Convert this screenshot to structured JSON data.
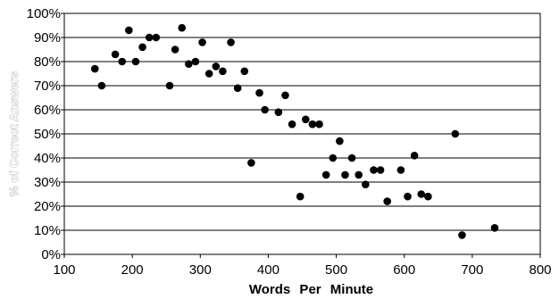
{
  "chart_data": {
    "type": "scatter",
    "title": "",
    "xlabel": "Words Per Minute",
    "ylabel": "% of Correct Answers",
    "xlim": [
      100,
      800
    ],
    "ylim": [
      0,
      100
    ],
    "x_ticks": [
      100,
      200,
      300,
      400,
      500,
      600,
      700,
      800
    ],
    "y_ticks": [
      0,
      10,
      20,
      30,
      40,
      50,
      60,
      70,
      80,
      90,
      100
    ],
    "x_tick_labels": [
      "100",
      "200",
      "300",
      "400",
      "500",
      "600",
      "700",
      "800"
    ],
    "y_tick_labels": [
      "0%",
      "10%",
      "20%",
      "30%",
      "40%",
      "50%",
      "60%",
      "70%",
      "80%",
      "90%",
      "100%"
    ],
    "grid": "horizontal",
    "legend": "none",
    "marker_color": "#000000",
    "series": [
      {
        "x": [
          145,
          155,
          175,
          185,
          195,
          205,
          215,
          225,
          235,
          255,
          263,
          273,
          283,
          293,
          303,
          313,
          323,
          333,
          345,
          355,
          365,
          375,
          387,
          395,
          415,
          425,
          435,
          447,
          455,
          465,
          475,
          485,
          495,
          505,
          513,
          523,
          533,
          543,
          555,
          565,
          575,
          595,
          605,
          615,
          625,
          635,
          675,
          685,
          733
        ],
        "y": [
          77,
          70,
          83,
          80,
          93,
          80,
          86,
          90,
          90,
          70,
          85,
          94,
          79,
          80,
          88,
          75,
          78,
          76,
          88,
          69,
          76,
          38,
          67,
          60,
          59,
          66,
          54,
          24,
          56,
          54,
          54,
          33,
          40,
          47,
          33,
          40,
          33,
          29,
          35,
          35,
          22,
          35,
          24,
          41,
          25,
          24,
          50,
          8,
          11
        ]
      }
    ]
  }
}
